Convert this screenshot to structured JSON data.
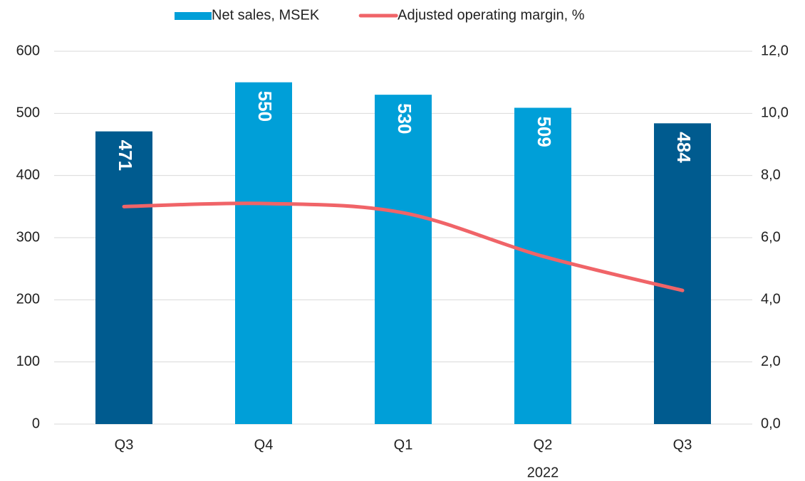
{
  "chart_data": {
    "type": "bar_line",
    "categories": [
      "Q3",
      "Q4",
      "Q1",
      "Q2",
      "Q3"
    ],
    "annotation": "2022",
    "series": [
      {
        "name": "Net sales, MSEK",
        "type": "bar",
        "color": "#009fd8",
        "colors": [
          "#005b8f",
          "#009fd8",
          "#009fd8",
          "#009fd8",
          "#005b8f"
        ],
        "values": [
          471,
          550,
          530,
          509,
          484
        ]
      },
      {
        "name": "Adjusted operating margin, %",
        "type": "line",
        "axis": "y2",
        "color": "#f06468",
        "values": [
          7.0,
          7.1,
          6.8,
          5.4,
          4.3
        ]
      }
    ],
    "ylim": [
      0,
      600
    ],
    "yticks": [
      0,
      100,
      200,
      300,
      400,
      500,
      600
    ],
    "y2lim": [
      0,
      12
    ],
    "y2ticks": [
      {
        "value": 0,
        "label": "0,0"
      },
      {
        "value": 2,
        "label": "2,0"
      },
      {
        "value": 4,
        "label": "4,0"
      },
      {
        "value": 6,
        "label": "6,0"
      },
      {
        "value": 8,
        "label": "8,0"
      },
      {
        "value": 10,
        "label": "10,0"
      },
      {
        "value": 12,
        "label": "12,0"
      }
    ],
    "grid": true
  }
}
